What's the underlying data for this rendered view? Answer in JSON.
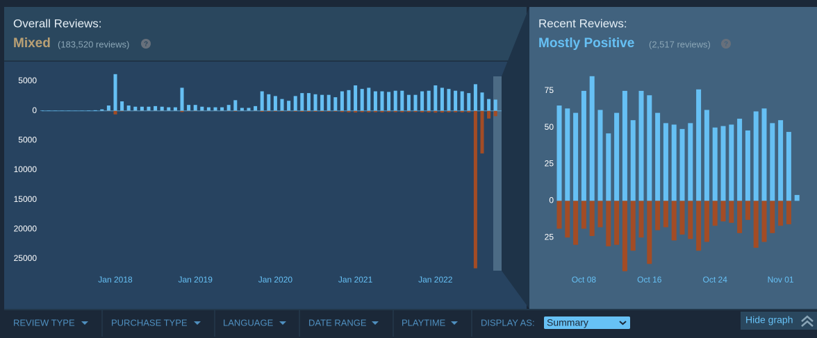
{
  "chart_data": [
    {
      "type": "bar",
      "title": "Overall Reviews:",
      "rating": "Mixed",
      "review_count": "(183,520 reviews)",
      "help": "?",
      "categories": [
        null,
        null,
        null,
        null,
        null,
        null,
        null,
        null,
        null,
        null,
        null,
        "Jan 2018",
        null,
        null,
        null,
        null,
        null,
        null,
        null,
        null,
        null,
        null,
        null,
        "Jan 2019",
        null,
        null,
        null,
        null,
        null,
        null,
        null,
        null,
        null,
        null,
        null,
        "Jan 2020",
        null,
        null,
        null,
        null,
        null,
        null,
        null,
        null,
        null,
        null,
        null,
        "Jan 2021",
        null,
        null,
        null,
        null,
        null,
        null,
        null,
        null,
        null,
        null,
        null,
        "Jan 2022",
        null,
        null,
        null,
        null,
        null,
        null,
        null,
        null,
        null
      ],
      "series": [
        {
          "color": "#66c0f4",
          "values": [
            60,
            50,
            40,
            40,
            40,
            30,
            40,
            60,
            100,
            250,
            900,
            6200,
            1600,
            900,
            700,
            700,
            700,
            800,
            700,
            600,
            600,
            3900,
            1000,
            1000,
            700,
            600,
            600,
            600,
            1000,
            1800,
            500,
            500,
            800,
            3300,
            2800,
            2500,
            2000,
            1700,
            2500,
            3000,
            3000,
            2800,
            2700,
            2700,
            2300,
            3300,
            3500,
            4300,
            3700,
            3900,
            3300,
            3300,
            3200,
            3400,
            3400,
            2700,
            2700,
            3300,
            3400,
            4300,
            3900,
            3700,
            3400,
            3300,
            3000,
            4500,
            3100,
            2000,
            1900
          ]
        },
        {
          "color": "#a34c25",
          "values": [
            0,
            0,
            0,
            0,
            0,
            0,
            0,
            0,
            0,
            -20,
            -50,
            -600,
            -80,
            -50,
            -40,
            -40,
            -40,
            -40,
            -40,
            -30,
            -30,
            -200,
            -60,
            -60,
            -40,
            -40,
            -40,
            -40,
            -60,
            -100,
            -30,
            -30,
            -50,
            -150,
            -120,
            -110,
            -100,
            -90,
            -120,
            -150,
            -150,
            -140,
            -130,
            -130,
            -120,
            -200,
            -250,
            -280,
            -220,
            -250,
            -230,
            -240,
            -200,
            -220,
            -230,
            -200,
            -200,
            -250,
            -260,
            -300,
            -280,
            -250,
            -240,
            -250,
            -260,
            -26600,
            -7200,
            -1300,
            -900
          ]
        }
      ],
      "ylim": [
        -27000,
        7000
      ],
      "yticks": [
        5000,
        0,
        {
          "value": -5000,
          "label": "5000"
        },
        {
          "value": -10000,
          "label": "10000"
        },
        {
          "value": -15000,
          "label": "15000"
        },
        {
          "value": -20000,
          "label": "20000"
        },
        {
          "value": -25000,
          "label": "25000"
        }
      ]
    },
    {
      "type": "bar",
      "title": "Recent Reviews:",
      "rating": "Mostly Positive",
      "review_count": "(2,517 reviews)",
      "help": "?",
      "categories": [
        null,
        null,
        null,
        "Oct 08",
        null,
        null,
        null,
        null,
        null,
        null,
        null,
        "Oct 16",
        null,
        null,
        null,
        null,
        null,
        null,
        null,
        "Oct 24",
        null,
        null,
        null,
        null,
        null,
        null,
        null,
        "Nov 01",
        null,
        null
      ],
      "series": [
        {
          "color": "#66c0f4",
          "values": [
            65,
            63,
            60,
            75,
            85,
            62,
            46,
            60,
            75,
            55,
            75,
            72,
            60,
            53,
            52,
            49,
            53,
            76,
            62,
            50,
            51,
            52,
            56,
            48,
            61,
            63,
            53,
            55,
            47,
            4
          ]
        },
        {
          "color": "#a34c25",
          "values": [
            -19,
            -25,
            -30,
            -19,
            -24,
            -18,
            -31,
            -30,
            -48,
            -34,
            -25,
            -43,
            -20,
            -18,
            -27,
            -23,
            -26,
            -34,
            -28,
            -17,
            -14,
            -15,
            -22,
            -13,
            -32,
            -28,
            -22,
            -17,
            -16,
            0
          ]
        }
      ],
      "ylim": [
        -50,
        92
      ],
      "yticks": [
        75,
        50,
        25,
        0,
        {
          "value": -25,
          "label": "25"
        }
      ]
    }
  ],
  "filters": [
    "REVIEW TYPE",
    "PURCHASE TYPE",
    "LANGUAGE",
    "DATE RANGE",
    "PLAYTIME"
  ],
  "display_as": {
    "label": "DISPLAY AS:",
    "selected": "Summary"
  },
  "hide_graph": "Hide graph"
}
